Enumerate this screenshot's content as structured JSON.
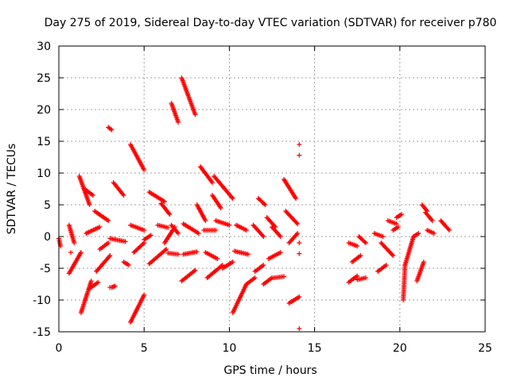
{
  "chart_data": {
    "type": "scatter",
    "title": "Day 275 of 2019, Sidereal Day-to-day VTEC variation (SDTVAR) for receiver p780",
    "xlabel": "GPS time / hours",
    "ylabel": "SDTVAR / TECUs",
    "xlim": [
      0,
      25
    ],
    "ylim": [
      -15,
      30
    ],
    "xticks": [
      0,
      5,
      10,
      15,
      20,
      25
    ],
    "yticks": [
      -15,
      -10,
      -5,
      0,
      5,
      10,
      15,
      20,
      25,
      30
    ],
    "grid": true,
    "marker": "+",
    "color": "#ff0000",
    "segments": [
      {
        "x": [
          0.0,
          0.1
        ],
        "y": [
          -0.3,
          -1.5
        ]
      },
      {
        "x": [
          0.6,
          0.9
        ],
        "y": [
          1.8,
          -1.0
        ]
      },
      {
        "x": [
          0.6,
          1.3
        ],
        "y": [
          -5.8,
          -2.5
        ]
      },
      {
        "x": [
          1.2,
          1.8
        ],
        "y": [
          9.5,
          5.0
        ]
      },
      {
        "x": [
          1.5,
          2.0
        ],
        "y": [
          7.5,
          6.5
        ]
      },
      {
        "x": [
          1.3,
          1.9
        ],
        "y": [
          -12.0,
          -7.0
        ]
      },
      {
        "x": [
          1.8,
          2.3
        ],
        "y": [
          -8.2,
          -7.2
        ]
      },
      {
        "x": [
          1.6,
          2.4
        ],
        "y": [
          0.5,
          1.5
        ]
      },
      {
        "x": [
          2.1,
          2.9
        ],
        "y": [
          4.0,
          2.5
        ]
      },
      {
        "x": [
          2.2,
          3.0
        ],
        "y": [
          -5.5,
          -3.0
        ]
      },
      {
        "x": [
          2.4,
          2.9
        ],
        "y": [
          -2.0,
          -1.0
        ]
      },
      {
        "x": [
          2.9,
          3.1
        ],
        "y": [
          17.2,
          16.8
        ]
      },
      {
        "x": [
          3.2,
          3.8
        ],
        "y": [
          8.5,
          6.5
        ]
      },
      {
        "x": [
          3.0,
          3.9
        ],
        "y": [
          -0.3,
          -0.8
        ]
      },
      {
        "x": [
          3.1,
          3.3
        ],
        "y": [
          -8.0,
          -7.8
        ]
      },
      {
        "x": [
          3.8,
          4.1
        ],
        "y": [
          -4.0,
          -4.5
        ]
      },
      {
        "x": [
          4.2,
          5.0
        ],
        "y": [
          14.5,
          10.5
        ]
      },
      {
        "x": [
          4.2,
          5.0
        ],
        "y": [
          1.8,
          1.0
        ]
      },
      {
        "x": [
          4.2,
          5.0
        ],
        "y": [
          -13.5,
          -9.2
        ]
      },
      {
        "x": [
          4.4,
          5.0
        ],
        "y": [
          -2.5,
          -1.0
        ]
      },
      {
        "x": [
          5.0,
          5.4
        ],
        "y": [
          -0.5,
          0.2
        ]
      },
      {
        "x": [
          5.3,
          6.3
        ],
        "y": [
          -4.3,
          -2.0
        ]
      },
      {
        "x": [
          5.3,
          6.2
        ],
        "y": [
          7.0,
          5.5
        ]
      },
      {
        "x": [
          5.8,
          6.4
        ],
        "y": [
          1.8,
          1.4
        ]
      },
      {
        "x": [
          6.0,
          6.5
        ],
        "y": [
          5.2,
          3.5
        ]
      },
      {
        "x": [
          6.2,
          6.8
        ],
        "y": [
          -1.0,
          1.5
        ]
      },
      {
        "x": [
          6.4,
          7.0
        ],
        "y": [
          -2.6,
          -2.8
        ]
      },
      {
        "x": [
          6.6,
          7.0
        ],
        "y": [
          21.0,
          18.0
        ]
      },
      {
        "x": [
          6.6,
          7.0
        ],
        "y": [
          1.8,
          0.5
        ]
      },
      {
        "x": [
          7.2,
          8.0
        ],
        "y": [
          25.0,
          19.2
        ]
      },
      {
        "x": [
          7.2,
          8.0
        ],
        "y": [
          -7.0,
          -5.3
        ]
      },
      {
        "x": [
          7.3,
          8.1
        ],
        "y": [
          -2.8,
          -2.4
        ]
      },
      {
        "x": [
          7.3,
          8.2
        ],
        "y": [
          2.0,
          0.5
        ]
      },
      {
        "x": [
          8.1,
          8.6
        ],
        "y": [
          5.0,
          2.5
        ]
      },
      {
        "x": [
          8.3,
          9.0
        ],
        "y": [
          11.0,
          8.5
        ]
      },
      {
        "x": [
          8.5,
          9.2
        ],
        "y": [
          1.0,
          1.0
        ]
      },
      {
        "x": [
          8.6,
          9.3
        ],
        "y": [
          -2.5,
          -3.5
        ]
      },
      {
        "x": [
          8.7,
          9.6
        ],
        "y": [
          -6.5,
          -4.5
        ]
      },
      {
        "x": [
          9.0,
          9.5
        ],
        "y": [
          6.5,
          4.5
        ]
      },
      {
        "x": [
          9.1,
          10.2
        ],
        "y": [
          9.5,
          6.0
        ]
      },
      {
        "x": [
          9.2,
          10.0
        ],
        "y": [
          2.5,
          1.8
        ]
      },
      {
        "x": [
          9.6,
          10.2
        ],
        "y": [
          -5.0,
          -4.0
        ]
      },
      {
        "x": [
          10.2,
          11.0
        ],
        "y": [
          -12.0,
          -7.5
        ]
      },
      {
        "x": [
          10.3,
          11.1
        ],
        "y": [
          -2.3,
          -2.8
        ]
      },
      {
        "x": [
          10.4,
          11.0
        ],
        "y": [
          1.8,
          1.0
        ]
      },
      {
        "x": [
          11.0,
          11.5
        ],
        "y": [
          -7.5,
          -6.5
        ]
      },
      {
        "x": [
          11.4,
          12.0
        ],
        "y": [
          1.8,
          0.0
        ]
      },
      {
        "x": [
          11.5,
          12.0
        ],
        "y": [
          -5.5,
          -4.5
        ]
      },
      {
        "x": [
          11.7,
          12.1
        ],
        "y": [
          6.0,
          5.0
        ]
      },
      {
        "x": [
          12.0,
          12.5
        ],
        "y": [
          -7.5,
          -6.5
        ]
      },
      {
        "x": [
          12.2,
          12.7
        ],
        "y": [
          3.0,
          1.5
        ]
      },
      {
        "x": [
          12.3,
          13.0
        ],
        "y": [
          -3.5,
          -2.5
        ]
      },
      {
        "x": [
          12.5,
          13.0
        ],
        "y": [
          1.5,
          0.0
        ]
      },
      {
        "x": [
          12.6,
          13.2
        ],
        "y": [
          -6.5,
          -6.3
        ]
      },
      {
        "x": [
          13.2,
          13.9
        ],
        "y": [
          9.0,
          6.0
        ]
      },
      {
        "x": [
          13.3,
          14.0
        ],
        "y": [
          4.0,
          2.0
        ]
      },
      {
        "x": [
          13.5,
          14.0
        ],
        "y": [
          -1.0,
          0.5
        ]
      },
      {
        "x": [
          13.5,
          14.1
        ],
        "y": [
          -10.5,
          -9.5
        ]
      },
      {
        "x": [
          17.0,
          17.5
        ],
        "y": [
          -7.2,
          -6.2
        ]
      },
      {
        "x": [
          17.0,
          17.5
        ],
        "y": [
          -1.0,
          -1.5
        ]
      },
      {
        "x": [
          17.2,
          17.7
        ],
        "y": [
          -4.0,
          -3.0
        ]
      },
      {
        "x": [
          17.5,
          18.0
        ],
        "y": [
          -6.8,
          -6.5
        ]
      },
      {
        "x": [
          17.6,
          18.0
        ],
        "y": [
          0.0,
          -1.0
        ]
      },
      {
        "x": [
          18.5,
          19.0
        ],
        "y": [
          0.5,
          0.0
        ]
      },
      {
        "x": [
          18.7,
          19.2
        ],
        "y": [
          -5.5,
          -4.5
        ]
      },
      {
        "x": [
          18.9,
          19.6
        ],
        "y": [
          -1.0,
          -3.0
        ]
      },
      {
        "x": [
          19.3,
          19.8
        ],
        "y": [
          2.5,
          2.0
        ]
      },
      {
        "x": [
          19.8,
          20.1
        ],
        "y": [
          3.0,
          3.5
        ]
      },
      {
        "x": [
          19.6,
          19.9
        ],
        "y": [
          1.0,
          1.5
        ]
      },
      {
        "x": [
          20.2,
          20.3
        ],
        "y": [
          -10.0,
          -4.5
        ]
      },
      {
        "x": [
          20.3,
          20.8
        ],
        "y": [
          -4.5,
          0.0
        ]
      },
      {
        "x": [
          20.8,
          21.1
        ],
        "y": [
          0.0,
          0.5
        ]
      },
      {
        "x": [
          21.0,
          21.4
        ],
        "y": [
          -7.0,
          -4.0
        ]
      },
      {
        "x": [
          21.3,
          21.6
        ],
        "y": [
          5.0,
          4.0
        ]
      },
      {
        "x": [
          21.5,
          21.9
        ],
        "y": [
          3.8,
          2.5
        ]
      },
      {
        "x": [
          21.6,
          22.0
        ],
        "y": [
          1.0,
          0.5
        ]
      },
      {
        "x": [
          22.4,
          22.9
        ],
        "y": [
          2.5,
          1.0
        ]
      }
    ],
    "points": [
      {
        "x": 14.1,
        "y": 14.5
      },
      {
        "x": 14.1,
        "y": 12.8
      },
      {
        "x": 14.1,
        "y": -1.0
      },
      {
        "x": 14.1,
        "y": -2.7
      },
      {
        "x": 14.1,
        "y": -14.5
      },
      {
        "x": 0.7,
        "y": -2.5
      },
      {
        "x": 3.0,
        "y": -8.0
      }
    ]
  }
}
